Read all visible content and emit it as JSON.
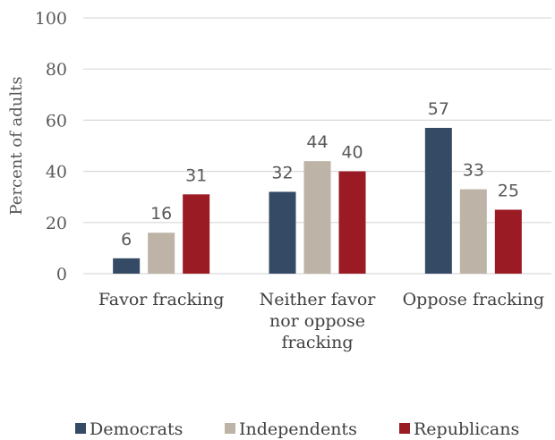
{
  "chart_data": {
    "type": "bar",
    "categories": [
      [
        "Favor fracking"
      ],
      [
        "Neither favor",
        "nor oppose",
        "fracking"
      ],
      [
        "Oppose fracking"
      ]
    ],
    "series": [
      {
        "name": "Democrats",
        "values": [
          6,
          32,
          57
        ],
        "color": "#354a64"
      },
      {
        "name": "Independents",
        "values": [
          16,
          44,
          33
        ],
        "color": "#bdb4a7"
      },
      {
        "name": "Republicans",
        "values": [
          31,
          40,
          25
        ],
        "color": "#9b1b24"
      }
    ],
    "title": "",
    "xlabel": "",
    "ylabel": "Percent of adults",
    "ylim": [
      0,
      100
    ],
    "yticks": [
      0,
      20,
      40,
      60,
      80,
      100
    ],
    "grid": true,
    "legend_position": "bottom"
  }
}
